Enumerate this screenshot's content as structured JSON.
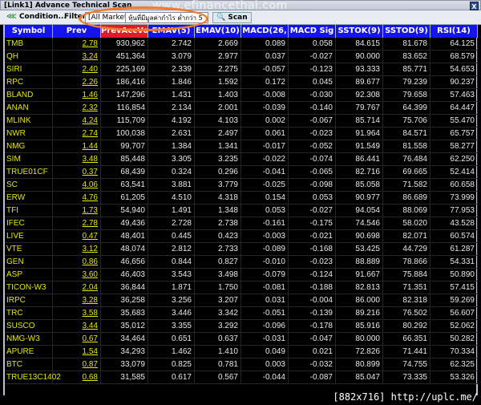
{
  "window": {
    "title": "[Link1] Advance Technical Scan",
    "close_label": "X",
    "watermark": "www.efinancethai.com"
  },
  "toolbar": {
    "condition_label": "Condition...",
    "filter_label": "Filter",
    "market_value": "[All Market]",
    "filter_value": "หุ้นที่มีมูลค่ากำไร ต่ำกว่า 5",
    "scan_label": "Scan"
  },
  "annotation_color": "#f07a2a",
  "columns": [
    "Symbol",
    "Prev",
    "PrevAccVol",
    "EMAV(5)",
    "EMAV(10)",
    "MACD(26,",
    "MACD Sig",
    "SSTOK(9)",
    "SSTOD(9)",
    "RSI(14)"
  ],
  "sorted_column": "PrevAccVol",
  "rows": [
    [
      "TMB",
      "2.78",
      "930,962",
      "2.742",
      "2.669",
      "0.089",
      "0.058",
      "84.615",
      "81.678",
      "64.125"
    ],
    [
      "QH",
      "3.24",
      "451,364",
      "3.079",
      "2.977",
      "0.037",
      "-0.027",
      "90.000",
      "83.652",
      "68.579"
    ],
    [
      "SIRI",
      "2.40",
      "225,169",
      "2.339",
      "2.275",
      "-0.057",
      "-0.123",
      "93.333",
      "85.771",
      "54.653"
    ],
    [
      "RPC",
      "2.26",
      "186,416",
      "1.846",
      "1.592",
      "0.172",
      "0.045",
      "89.677",
      "79.239",
      "90.237"
    ],
    [
      "BLAND",
      "1.46",
      "147,296",
      "1.431",
      "1.403",
      "-0.008",
      "-0.030",
      "92.308",
      "79.658",
      "57.463"
    ],
    [
      "ANAN",
      "2.32",
      "116,854",
      "2.134",
      "2.001",
      "-0.039",
      "-0.140",
      "79.767",
      "64.399",
      "64.447"
    ],
    [
      "MLINK",
      "4.24",
      "115,709",
      "4.192",
      "4.103",
      "0.002",
      "-0.067",
      "85.714",
      "75.706",
      "55.470"
    ],
    [
      "NWR",
      "2.74",
      "100,038",
      "2.631",
      "2.497",
      "0.061",
      "-0.023",
      "91.964",
      "84.571",
      "65.757"
    ],
    [
      "NMG",
      "1.44",
      "99,707",
      "1.384",
      "1.341",
      "-0.017",
      "-0.052",
      "91.549",
      "81.558",
      "58.277"
    ],
    [
      "SIM",
      "3.48",
      "85,448",
      "3.305",
      "3.235",
      "-0.022",
      "-0.074",
      "86.441",
      "76.484",
      "62.250"
    ],
    [
      "TRUE01CF",
      "0.37",
      "68,439",
      "0.324",
      "0.296",
      "-0.041",
      "-0.065",
      "82.716",
      "69.665",
      "52.414"
    ],
    [
      "SC",
      "4.06",
      "63,541",
      "3.881",
      "3.779",
      "-0.025",
      "-0.098",
      "85.058",
      "71.582",
      "60.658"
    ],
    [
      "ERW",
      "4.76",
      "61,205",
      "4.510",
      "4.318",
      "0.154",
      "0.053",
      "90.977",
      "86.689",
      "73.999"
    ],
    [
      "TFI",
      "1.73",
      "54,940",
      "1.491",
      "1.348",
      "0.053",
      "-0.027",
      "94.054",
      "88.069",
      "77.953"
    ],
    [
      "IFEC",
      "2.78",
      "49,436",
      "2.728",
      "2.738",
      "-0.161",
      "-0.175",
      "74.546",
      "58.020",
      "43.528"
    ],
    [
      "LIVE",
      "0.47",
      "48,401",
      "0.445",
      "0.423",
      "-0.003",
      "-0.021",
      "90.698",
      "82.071",
      "60.574"
    ],
    [
      "VTE",
      "3.12",
      "48,074",
      "2.812",
      "2.733",
      "-0.089",
      "-0.168",
      "53.425",
      "44.729",
      "61.287"
    ],
    [
      "GEN",
      "0.86",
      "46,656",
      "0.844",
      "0.827",
      "-0.010",
      "-0.023",
      "88.889",
      "78.866",
      "54.331"
    ],
    [
      "ASP",
      "3.60",
      "46,403",
      "3.543",
      "3.498",
      "-0.079",
      "-0.124",
      "91.667",
      "75.884",
      "50.890"
    ],
    [
      "TICON-W3",
      "2.04",
      "36,844",
      "1.871",
      "1.750",
      "-0.081",
      "-0.188",
      "82.813",
      "71.351",
      "57.415"
    ],
    [
      "IRPC",
      "3.28",
      "36,258",
      "3.256",
      "3.207",
      "0.031",
      "-0.004",
      "86.000",
      "82.318",
      "59.269"
    ],
    [
      "TRC",
      "3.58",
      "35,683",
      "3.446",
      "3.342",
      "-0.051",
      "-0.139",
      "89.216",
      "76.502",
      "56.607"
    ],
    [
      "SUSCO",
      "3.44",
      "35,012",
      "3.355",
      "3.292",
      "-0.096",
      "-0.178",
      "85.916",
      "80.292",
      "52.062"
    ],
    [
      "NMG-W3",
      "0.67",
      "34,464",
      "0.651",
      "0.637",
      "-0.031",
      "-0.047",
      "80.000",
      "66.351",
      "50.282"
    ],
    [
      "APURE",
      "1.54",
      "34,293",
      "1.462",
      "1.410",
      "0.049",
      "0.021",
      "72.826",
      "71.441",
      "70.334"
    ],
    [
      "BTC",
      "0.87",
      "33,079",
      "0.825",
      "0.781",
      "0.003",
      "-0.032",
      "80.899",
      "74.755",
      "62.325"
    ],
    [
      "TRUE13C1402",
      "0.68",
      "31,585",
      "0.617",
      "0.567",
      "-0.044",
      "-0.087",
      "85.047",
      "73.335",
      "53.326"
    ]
  ],
  "footer_watermark": "[882x716] http://uplc.me/"
}
